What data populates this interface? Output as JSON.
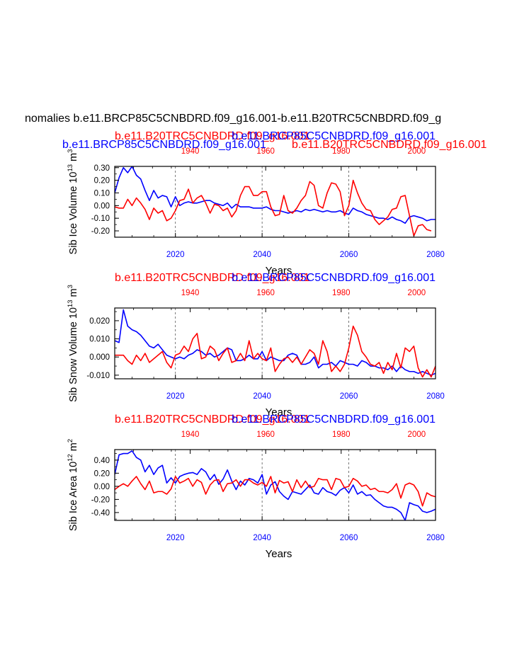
{
  "main_title": "nomalies b.e11.BRCP85C5CNBDRD.f09_g16.001-b.e11.B20TRC5CNBDRD.f09_g",
  "colors": {
    "rcp": "#0000ff",
    "hist": "#ff0000",
    "axis": "#000000"
  },
  "chart_data": [
    {
      "type": "line",
      "ylabel": "Sib Ice Volume 10",
      "ylabel_sup1": "13",
      "ylabel_unit": "m",
      "ylabel_sup2": "3",
      "xlabel": "Years",
      "ylim": [
        -0.25,
        0.31
      ],
      "yticks": [
        -0.2,
        -0.1,
        0.0,
        0.1,
        0.2,
        0.3
      ],
      "ytick_labels": [
        "-0.20",
        "-0.10",
        "0.00",
        "0.10",
        "0.20",
        "0.30"
      ],
      "bottom_axis": {
        "range": [
          2006,
          2080
        ],
        "ticks": [
          2020,
          2040,
          2060,
          2080
        ],
        "labels": [
          "2020",
          "2040",
          "2060",
          "2080"
        ]
      },
      "top_axis": {
        "range": [
          1920,
          2005
        ],
        "ticks": [
          1940,
          1960,
          1980,
          2000
        ],
        "labels": [
          "1940",
          "1960",
          "1980",
          "2000"
        ]
      },
      "dashed_years": [
        2020,
        2040,
        2060
      ],
      "top_titles": [
        {
          "text": "b.e11.B20TRC5CNBDRD.f09_g16.001",
          "color": "hist",
          "row": 0,
          "anchor": "left",
          "pos": "left"
        },
        {
          "text": "b.e11.BRCP85C5CNBDRD.f09_g16.001",
          "color": "rcp",
          "row": 1,
          "anchor": "left",
          "pos": "left"
        },
        {
          "text": "b.e11.BRCP85C5CNBDRD.f09_g16.001",
          "color": "rcp",
          "row": 0,
          "anchor": "right",
          "pos": "right"
        },
        {
          "text": "b.e11.B20TRC5CNBDRD.f09_g16.001",
          "color": "hist",
          "row": 1,
          "anchor": "left",
          "pos": "mid"
        }
      ],
      "series": [
        {
          "color": "rcp",
          "values": [
            0.1,
            0.22,
            0.3,
            0.26,
            0.31,
            0.24,
            0.21,
            0.12,
            0.04,
            0.12,
            0.06,
            0.08,
            0.07,
            -0.01,
            0.07,
            0.0,
            0.02,
            0.03,
            0.02,
            0.02,
            0.03,
            0.04,
            0.04,
            0.02,
            0.01,
            0.0,
            0.02,
            -0.02,
            0.01,
            -0.01,
            -0.01,
            -0.01,
            -0.02,
            -0.02,
            -0.02,
            -0.01,
            -0.03,
            -0.04,
            -0.04,
            -0.05,
            -0.06,
            -0.05,
            -0.04,
            -0.05,
            -0.03,
            -0.04,
            -0.03,
            -0.04,
            -0.05,
            -0.04,
            -0.05,
            -0.05,
            -0.04,
            -0.06,
            -0.07,
            -0.02,
            -0.04,
            -0.05,
            -0.07,
            -0.08,
            -0.09,
            -0.1,
            -0.1,
            -0.11,
            -0.09,
            -0.11,
            -0.12,
            -0.14,
            -0.09,
            -0.08,
            -0.09,
            -0.1,
            -0.12,
            -0.11,
            -0.11
          ]
        },
        {
          "color": "hist",
          "values": [
            -0.01,
            -0.02,
            -0.02,
            0.05,
            0.0,
            0.06,
            0.02,
            -0.03,
            -0.11,
            -0.02,
            -0.06,
            -0.04,
            -0.12,
            -0.1,
            -0.04,
            0.04,
            0.05,
            0.13,
            0.02,
            0.06,
            0.08,
            0.02,
            -0.06,
            0.01,
            0.0,
            -0.04,
            -0.02,
            -0.09,
            -0.04,
            0.08,
            0.15,
            0.15,
            0.08,
            0.08,
            0.11,
            0.11,
            -0.01,
            -0.08,
            -0.07,
            0.08,
            -0.04,
            -0.06,
            -0.02,
            0.04,
            0.08,
            0.19,
            0.16,
            0.0,
            -0.02,
            0.1,
            0.18,
            0.17,
            0.11,
            -0.08,
            0.0,
            0.2,
            0.1,
            0.02,
            -0.03,
            -0.04,
            -0.11,
            -0.15,
            -0.12,
            -0.09,
            -0.03,
            -0.02,
            0.07,
            0.08,
            -0.08,
            -0.24,
            -0.16,
            -0.15,
            -0.19,
            -0.2
          ]
        }
      ]
    },
    {
      "type": "line",
      "ylabel": "Sib Snow Volume 10",
      "ylabel_sup1": "13",
      "ylabel_unit": "m",
      "ylabel_sup2": "3",
      "xlabel": "Years",
      "ylim": [
        -0.012,
        0.027
      ],
      "yticks": [
        -0.01,
        0.0,
        0.01,
        0.02
      ],
      "ytick_labels": [
        "-0.010",
        "0.000",
        "0.010",
        "0.020"
      ],
      "bottom_axis": {
        "range": [
          2006,
          2080
        ],
        "ticks": [
          2020,
          2040,
          2060,
          2080
        ],
        "labels": [
          "2020",
          "2040",
          "2060",
          "2080"
        ]
      },
      "top_axis": {
        "range": [
          1920,
          2005
        ],
        "ticks": [
          1940,
          1960,
          1980,
          2000
        ],
        "labels": [
          "1940",
          "1960",
          "1980",
          "2000"
        ]
      },
      "dashed_years": [
        2020,
        2040,
        2060
      ],
      "top_titles": [
        {
          "text": "b.e11.B20TRC5CNBDRD.f09_g16.001",
          "color": "hist",
          "row": 0,
          "anchor": "left",
          "pos": "left"
        },
        {
          "text": "b.e11.BRCP85C5CNBDRD.f09_g16.001",
          "color": "rcp",
          "row": 0,
          "anchor": "right",
          "pos": "right"
        }
      ],
      "series": [
        {
          "color": "rcp",
          "values": [
            0.009,
            0.008,
            0.026,
            0.017,
            0.015,
            0.014,
            0.012,
            0.009,
            0.006,
            0.005,
            0.007,
            0.004,
            0.001,
            0.0,
            -0.001,
            0.0,
            -0.001,
            0.001,
            0.002,
            0.004,
            0.003,
            0.001,
            0.002,
            0.0,
            0.001,
            0.003,
            0.005,
            0.004,
            -0.002,
            -0.002,
            -0.001,
            0.001,
            -0.001,
            -0.001,
            0.003,
            -0.002,
            0.0,
            -0.001,
            -0.002,
            -0.002,
            0.001,
            0.002,
            0.001,
            -0.004,
            -0.004,
            -0.003,
            0.0,
            -0.006,
            -0.004,
            -0.004,
            -0.003,
            -0.005,
            -0.002,
            -0.003,
            -0.004,
            -0.004,
            -0.005,
            -0.002,
            -0.003,
            -0.005,
            -0.005,
            -0.006,
            -0.006,
            -0.007,
            -0.005,
            -0.008,
            -0.005,
            -0.007,
            -0.008,
            -0.008,
            -0.009,
            -0.008,
            -0.009,
            -0.01,
            -0.009
          ]
        },
        {
          "color": "hist",
          "values": [
            0.001,
            0.001,
            0.001,
            -0.002,
            -0.004,
            0.001,
            -0.002,
            0.002,
            -0.003,
            -0.001,
            0.001,
            0.003,
            -0.003,
            -0.006,
            0.001,
            0.002,
            0.006,
            0.003,
            0.01,
            0.013,
            -0.001,
            0.0,
            0.006,
            0.004,
            -0.002,
            0.002,
            0.005,
            -0.003,
            -0.002,
            0.002,
            -0.002,
            0.009,
            -0.001,
            0.002,
            -0.001,
            -0.002,
            0.005,
            -0.008,
            -0.004,
            -0.001,
            0.0,
            -0.003,
            0.0,
            -0.004,
            0.0,
            0.004,
            0.002,
            -0.004,
            0.009,
            0.003,
            -0.008,
            -0.005,
            -0.008,
            -0.004,
            0.005,
            0.017,
            0.012,
            0.003,
            0.0,
            -0.004,
            -0.005,
            -0.003,
            -0.009,
            -0.003,
            -0.007,
            0.002,
            -0.006,
            0.005,
            0.003,
            0.006,
            -0.006,
            -0.011,
            -0.007,
            -0.011,
            -0.005
          ]
        }
      ]
    },
    {
      "type": "line",
      "ylabel": "Sib Ice Area 10",
      "ylabel_sup1": "12",
      "ylabel_unit": "m",
      "ylabel_sup2": "2",
      "xlabel": "Years",
      "ylim": [
        -0.52,
        0.56
      ],
      "yticks": [
        -0.4,
        -0.2,
        0.0,
        0.2,
        0.4
      ],
      "ytick_labels": [
        "-0.40",
        "-0.20",
        "0.00",
        "0.20",
        "0.40"
      ],
      "bottom_axis": {
        "range": [
          2006,
          2080
        ],
        "ticks": [
          2020,
          2040,
          2060,
          2080
        ],
        "labels": [
          "2020",
          "2040",
          "2060",
          "2080"
        ]
      },
      "top_axis": {
        "range": [
          1920,
          2005
        ],
        "ticks": [
          1940,
          1960,
          1980,
          2000
        ],
        "labels": [
          "1940",
          "1960",
          "1980",
          "2000"
        ]
      },
      "dashed_years": [
        2020,
        2040,
        2060
      ],
      "top_titles": [
        {
          "text": "b.e11.B20TRC5CNBDRD.f09_g16.001",
          "color": "hist",
          "row": 0,
          "anchor": "left",
          "pos": "left"
        },
        {
          "text": "b.e11.BRCP85C5CNBDRD.f09_g16.001",
          "color": "rcp",
          "row": 0,
          "anchor": "right",
          "pos": "right"
        }
      ],
      "series": [
        {
          "color": "rcp",
          "values": [
            0.18,
            0.48,
            0.5,
            0.5,
            0.54,
            0.44,
            0.4,
            0.22,
            0.32,
            0.18,
            0.28,
            0.32,
            0.05,
            0.13,
            0.05,
            0.15,
            0.18,
            0.2,
            0.21,
            0.18,
            0.27,
            0.22,
            0.1,
            0.18,
            0.03,
            0.11,
            0.25,
            0.08,
            -0.05,
            0.08,
            0.02,
            0.12,
            0.1,
            0.05,
            0.18,
            -0.12,
            0.02,
            0.07,
            -0.08,
            -0.15,
            -0.2,
            -0.08,
            -0.1,
            -0.12,
            -0.05,
            0.02,
            -0.1,
            -0.12,
            -0.02,
            -0.08,
            -0.1,
            -0.14,
            -0.06,
            -0.02,
            -0.1,
            0.02,
            -0.12,
            -0.08,
            -0.14,
            -0.13,
            -0.2,
            -0.25,
            -0.3,
            -0.32,
            -0.32,
            -0.35,
            -0.4,
            -0.52,
            -0.25,
            -0.28,
            -0.3,
            -0.38,
            -0.4,
            -0.38,
            -0.35
          ]
        },
        {
          "color": "hist",
          "values": [
            -0.05,
            0.0,
            0.04,
            0.0,
            0.08,
            0.15,
            0.04,
            -0.05,
            0.08,
            -0.1,
            -0.08,
            -0.08,
            -0.12,
            -0.04,
            0.15,
            0.05,
            0.08,
            0.12,
            0.0,
            0.1,
            0.06,
            -0.12,
            0.02,
            0.09,
            0.1,
            -0.08,
            0.04,
            0.05,
            0.1,
            0.0,
            0.1,
            0.1,
            0.05,
            0.02,
            0.06,
            0.0,
            0.15,
            -0.1,
            0.09,
            0.05,
            0.07,
            -0.08,
            0.1,
            -0.02,
            0.08,
            -0.02,
            0.0,
            0.12,
            0.1,
            0.1,
            -0.05,
            0.12,
            0.1,
            -0.02,
            0.0,
            0.12,
            0.08,
            0.0,
            0.02,
            -0.05,
            -0.03,
            -0.08,
            -0.08,
            -0.1,
            -0.05,
            0.04,
            -0.18,
            0.02,
            0.05,
            0.02,
            -0.08,
            -0.3,
            -0.1,
            -0.14,
            -0.16
          ]
        }
      ]
    }
  ]
}
